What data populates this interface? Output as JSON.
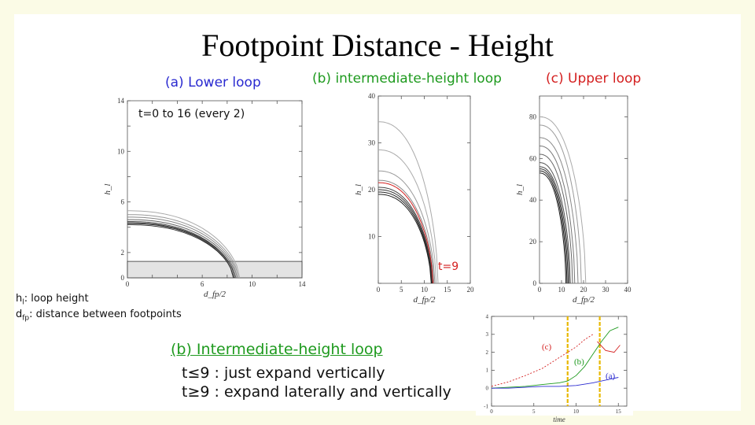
{
  "title": "Footpoint Distance - Height",
  "colors": {
    "blue": "#2a2ad0",
    "green": "#1e9a1e",
    "red": "#d42020",
    "gold": "#e8b800"
  },
  "labels": {
    "panel_a": "(a) Lower loop",
    "panel_b": "(b) intermediate-height loop",
    "panel_c": "(c) Upper loop",
    "time_note": "t=0 to 16 (every 2)",
    "t9": "t=9",
    "legend_h": "h",
    "legend_h_sub": "l",
    "legend_h_text": ": loop height",
    "legend_d": "d",
    "legend_d_sub": "fp",
    "legend_d_text": ": distance between footpoints",
    "summary_title": "(b) Intermediate-height loop",
    "summary_line1": "t≤9 : just expand vertically",
    "summary_line2": "t≥9 : expand laterally and vertically"
  },
  "chart_data": [
    {
      "id": "a",
      "type": "line",
      "xlabel": "d_fp/2",
      "ylabel": "h_l",
      "xlim": [
        0,
        14
      ],
      "ylim": [
        0,
        14
      ],
      "xticks": [
        0,
        2,
        4,
        6,
        8,
        10,
        12,
        14
      ],
      "xtick_labels": [
        "0",
        "",
        "",
        "6",
        "",
        "10",
        "",
        "14"
      ],
      "yticks": [
        0,
        2,
        4,
        6,
        8,
        10,
        12,
        14
      ],
      "ytick_labels": [
        "0",
        "2",
        "",
        "6",
        "",
        "10",
        "",
        "14"
      ],
      "hline": 1.3,
      "curves": [
        {
          "h0": 4.2,
          "xe": 8.5,
          "color": "#333"
        },
        {
          "h0": 4.3,
          "xe": 8.5,
          "color": "#333"
        },
        {
          "h0": 4.35,
          "xe": 8.6,
          "color": "#333"
        },
        {
          "h0": 4.45,
          "xe": 8.6,
          "color": "#444"
        },
        {
          "h0": 4.6,
          "xe": 8.7,
          "color": "#666"
        },
        {
          "h0": 4.8,
          "xe": 8.8,
          "color": "#888"
        },
        {
          "h0": 5.0,
          "xe": 8.9,
          "color": "#999"
        },
        {
          "h0": 5.3,
          "xe": 9.0,
          "color": "#aaa"
        }
      ]
    },
    {
      "id": "b",
      "type": "line",
      "xlabel": "d_fp/2",
      "ylabel": "h_l",
      "xlim": [
        0,
        20
      ],
      "ylim": [
        0,
        40
      ],
      "xticks": [
        0,
        5,
        10,
        15,
        20
      ],
      "xtick_labels": [
        "0",
        "5",
        "10",
        "15",
        "20"
      ],
      "yticks": [
        0,
        10,
        20,
        30,
        40
      ],
      "ytick_labels": [
        "",
        "10",
        "20",
        "30",
        "40"
      ],
      "curves": [
        {
          "h0": 19.0,
          "xe": 11.5,
          "color": "#222"
        },
        {
          "h0": 19.5,
          "xe": 11.6,
          "color": "#222"
        },
        {
          "h0": 20.0,
          "xe": 11.7,
          "color": "#333"
        },
        {
          "h0": 20.5,
          "xe": 11.8,
          "color": "#444"
        },
        {
          "h0": 21.5,
          "xe": 11.9,
          "color": "#d42020"
        },
        {
          "h0": 22.0,
          "xe": 12.1,
          "color": "#888"
        },
        {
          "h0": 24.0,
          "xe": 12.3,
          "color": "#999"
        },
        {
          "h0": 28.5,
          "xe": 12.6,
          "color": "#aaa"
        },
        {
          "h0": 34.5,
          "xe": 13.0,
          "color": "#aaa"
        }
      ]
    },
    {
      "id": "c",
      "type": "line",
      "xlabel": "d_fp/2",
      "ylabel": "h_l",
      "xlim": [
        0,
        40
      ],
      "ylim": [
        0,
        90
      ],
      "xticks": [
        0,
        10,
        20,
        30,
        40
      ],
      "xtick_labels": [
        "0",
        "10",
        "20",
        "30",
        "40"
      ],
      "yticks": [
        0,
        20,
        40,
        60,
        80
      ],
      "ytick_labels": [
        "0",
        "20",
        "40",
        "60",
        "80"
      ],
      "curves": [
        {
          "h0": 53,
          "xe": 12,
          "color": "#222"
        },
        {
          "h0": 54,
          "xe": 12.5,
          "color": "#222"
        },
        {
          "h0": 55,
          "xe": 13,
          "color": "#333"
        },
        {
          "h0": 56,
          "xe": 13.5,
          "color": "#444"
        },
        {
          "h0": 58,
          "xe": 14,
          "color": "#555"
        },
        {
          "h0": 62,
          "xe": 15,
          "color": "#666"
        },
        {
          "h0": 66,
          "xe": 16,
          "color": "#777"
        },
        {
          "h0": 70,
          "xe": 17.5,
          "color": "#888"
        },
        {
          "h0": 76,
          "xe": 19,
          "color": "#999"
        },
        {
          "h0": 80,
          "xe": 21,
          "color": "#aaa"
        }
      ]
    },
    {
      "id": "time",
      "type": "line",
      "xlabel": "time",
      "xlim": [
        0,
        16
      ],
      "ylim": [
        -1,
        4
      ],
      "xticks": [
        0,
        5,
        10,
        15
      ],
      "xtick_labels": [
        "0",
        "5",
        "10",
        "15"
      ],
      "yticks": [
        -1,
        0,
        1,
        2,
        3,
        4
      ],
      "ytick_labels": [
        "-1",
        "0",
        "1",
        "2",
        "3",
        "4"
      ],
      "vlines": [
        9,
        12.8
      ],
      "series": [
        {
          "name": "(c)",
          "color": "#d42020",
          "dash": true,
          "x": [
            0,
            2,
            4,
            6,
            8,
            10,
            11,
            12
          ],
          "y": [
            0.1,
            0.35,
            0.7,
            1.1,
            1.7,
            2.3,
            2.7,
            3.0
          ]
        },
        {
          "name": "(b)",
          "color": "#1e9a1e",
          "dash": false,
          "x": [
            0,
            2,
            4,
            6,
            8,
            9,
            10,
            11,
            12,
            13,
            14,
            15
          ],
          "y": [
            0.0,
            0.05,
            0.1,
            0.2,
            0.3,
            0.4,
            0.7,
            1.2,
            1.9,
            2.6,
            3.2,
            3.4
          ]
        },
        {
          "name": "(a)",
          "color": "#2a2ad0",
          "dash": false,
          "x": [
            0,
            2,
            4,
            6,
            8,
            10,
            12,
            14,
            15
          ],
          "y": [
            0.0,
            0.0,
            0.05,
            0.1,
            0.1,
            0.15,
            0.3,
            0.5,
            0.6
          ]
        },
        {
          "name": "",
          "color": "#d42020",
          "dash": false,
          "x": [
            12.5,
            13.5,
            14.5,
            15.2
          ],
          "y": [
            2.6,
            2.1,
            2.0,
            2.4
          ]
        }
      ]
    }
  ]
}
